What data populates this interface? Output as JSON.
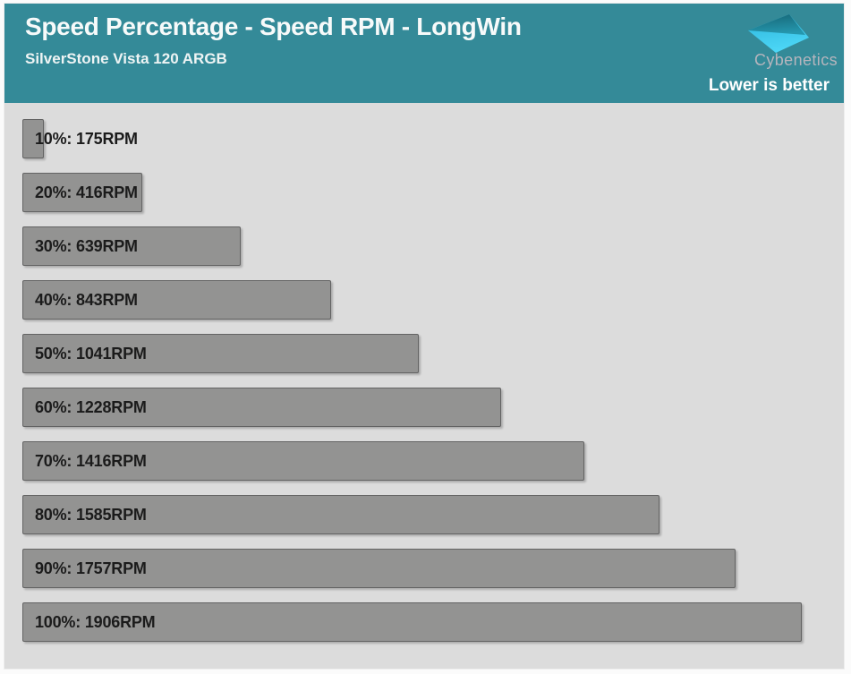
{
  "header": {
    "title": "Speed Percentage - Speed RPM - LongWin",
    "subtitle": "SilverStone Vista 120 ARGB",
    "brand": "Cybenetics",
    "note": "Lower is better"
  },
  "colors": {
    "header_bg": "#348a98",
    "plot_bg": "#dcdcdc",
    "bar_fill": "#939392",
    "bar_border": "#636363",
    "bar_label_text": "#1b1b1b",
    "header_text": "#ffffff",
    "brand_text": "#b6b5bd",
    "logo_dark_teal": "#1a6d7d",
    "logo_bright_cyan": "#44d4f4"
  },
  "chart_data": {
    "type": "bar",
    "orientation": "horizontal",
    "title": "Speed Percentage - Speed RPM - LongWin",
    "subtitle": "SilverStone Vista 120 ARGB",
    "annotation": "Lower is better",
    "categories": [
      "10%",
      "20%",
      "30%",
      "40%",
      "50%",
      "60%",
      "70%",
      "80%",
      "90%",
      "100%"
    ],
    "values": [
      175,
      416,
      639,
      843,
      1041,
      1228,
      1416,
      1585,
      1757,
      1906
    ],
    "unit": "RPM",
    "bar_labels": [
      "10%: 175RPM",
      "20%: 416RPM",
      "30%: 639RPM",
      "40%: 843RPM",
      "50%: 1041RPM",
      "60%: 1228RPM",
      "70%: 1416RPM",
      "80%: 1585RPM",
      "90%: 1757RPM",
      "100%: 1906RPM"
    ],
    "xlabel": "",
    "ylabel": "",
    "xlim": [
      0,
      2050
    ],
    "grid": false,
    "legend": false
  }
}
